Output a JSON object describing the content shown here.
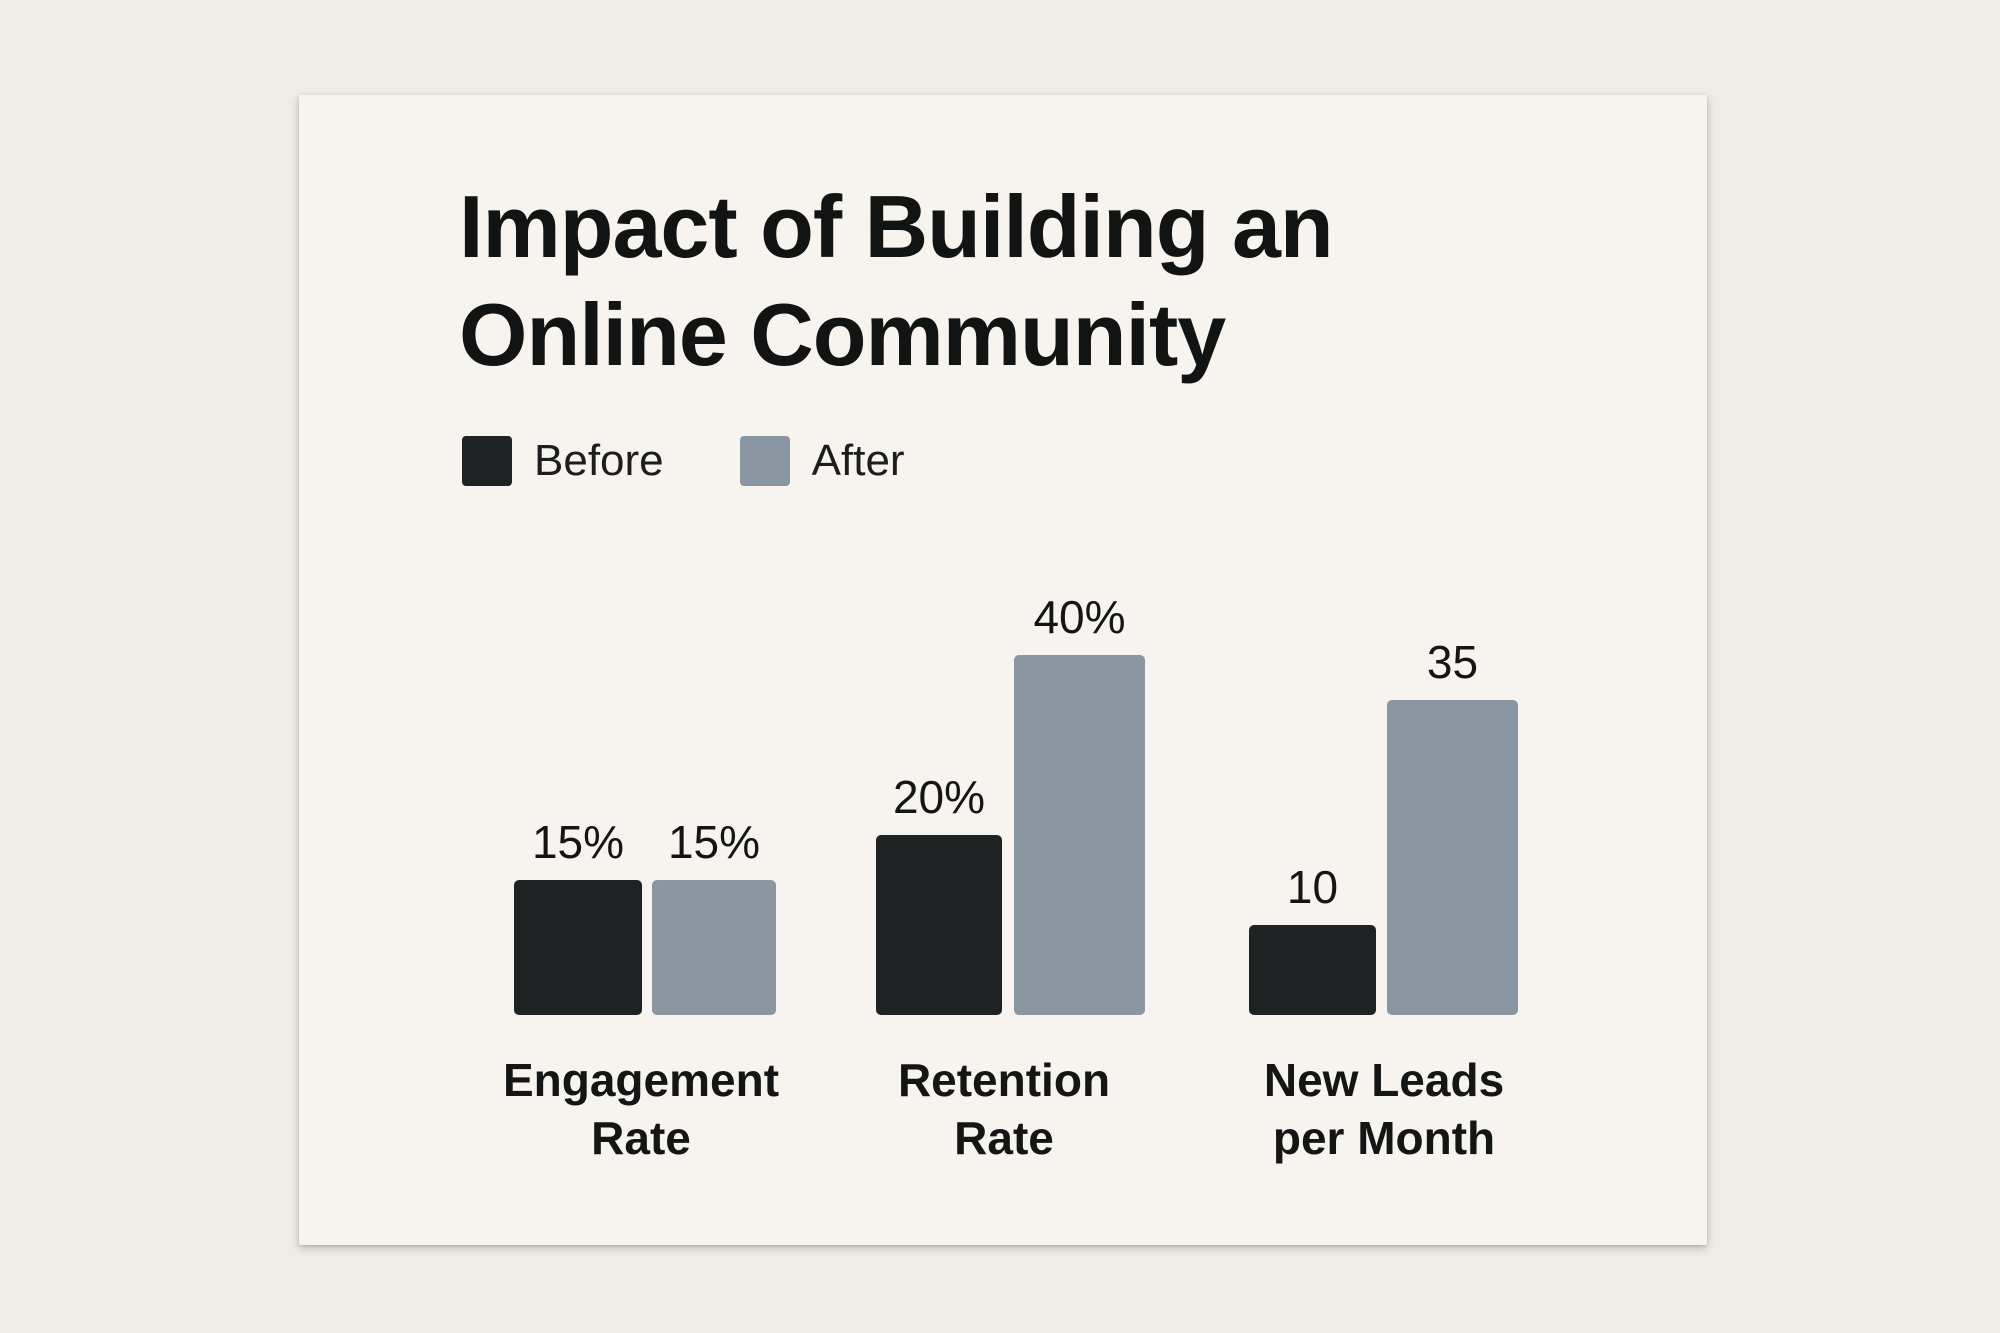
{
  "chart_data": {
    "type": "bar",
    "title_lines": [
      "Impact of Building an",
      "Online Community"
    ],
    "categories": [
      [
        "Engagement",
        "Rate"
      ],
      [
        "Retention",
        "Rate"
      ],
      [
        "New Leads",
        "per Month"
      ]
    ],
    "series": [
      {
        "name": "Before",
        "color": "#1f2223",
        "values": [
          15,
          20,
          10
        ],
        "labels": [
          "15%",
          "20%",
          "10"
        ]
      },
      {
        "name": "After",
        "color": "#8a97a2",
        "values": [
          15,
          40,
          35
        ],
        "labels": [
          "15%",
          "40%",
          "35"
        ]
      }
    ],
    "legend": "top-left",
    "grid": false,
    "axes_visible": false
  }
}
